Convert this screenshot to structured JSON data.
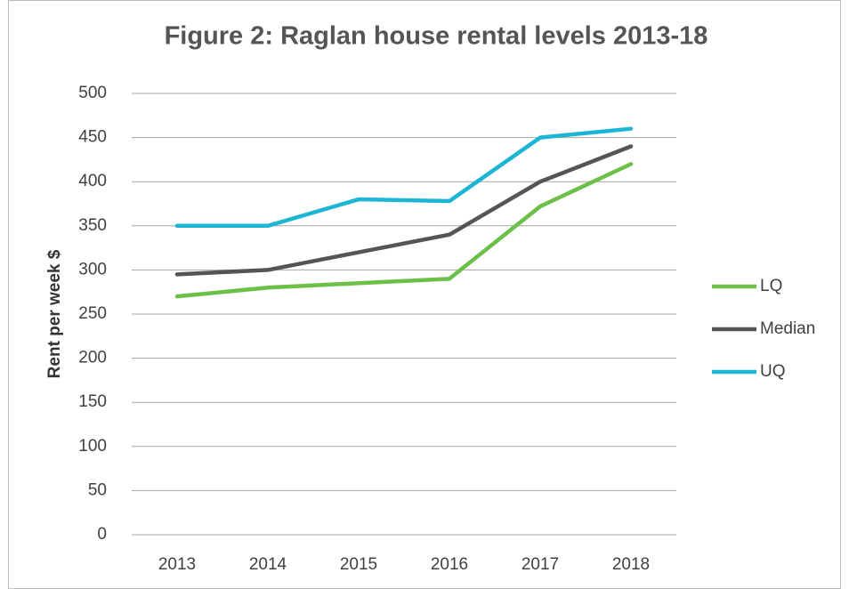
{
  "chart_data": {
    "type": "line",
    "title": "Figure 2: Raglan house rental levels 2013-18",
    "y_label": "Rent per week $",
    "categories": [
      "2013",
      "2014",
      "2015",
      "2016",
      "2017",
      "2018"
    ],
    "series": [
      {
        "name": "LQ",
        "color": "#6cbf47",
        "values": [
          270,
          280,
          285,
          290,
          372,
          420
        ]
      },
      {
        "name": "Median",
        "color": "#555555",
        "values": [
          295,
          300,
          320,
          340,
          400,
          440
        ]
      },
      {
        "name": "UQ",
        "color": "#1cb6d4",
        "values": [
          350,
          350,
          380,
          378,
          450,
          460
        ]
      }
    ],
    "ylim": [
      0,
      500
    ],
    "yticks": [
      0,
      50,
      100,
      150,
      200,
      250,
      300,
      350,
      400,
      450,
      500
    ],
    "grid": true,
    "legend": "right"
  }
}
